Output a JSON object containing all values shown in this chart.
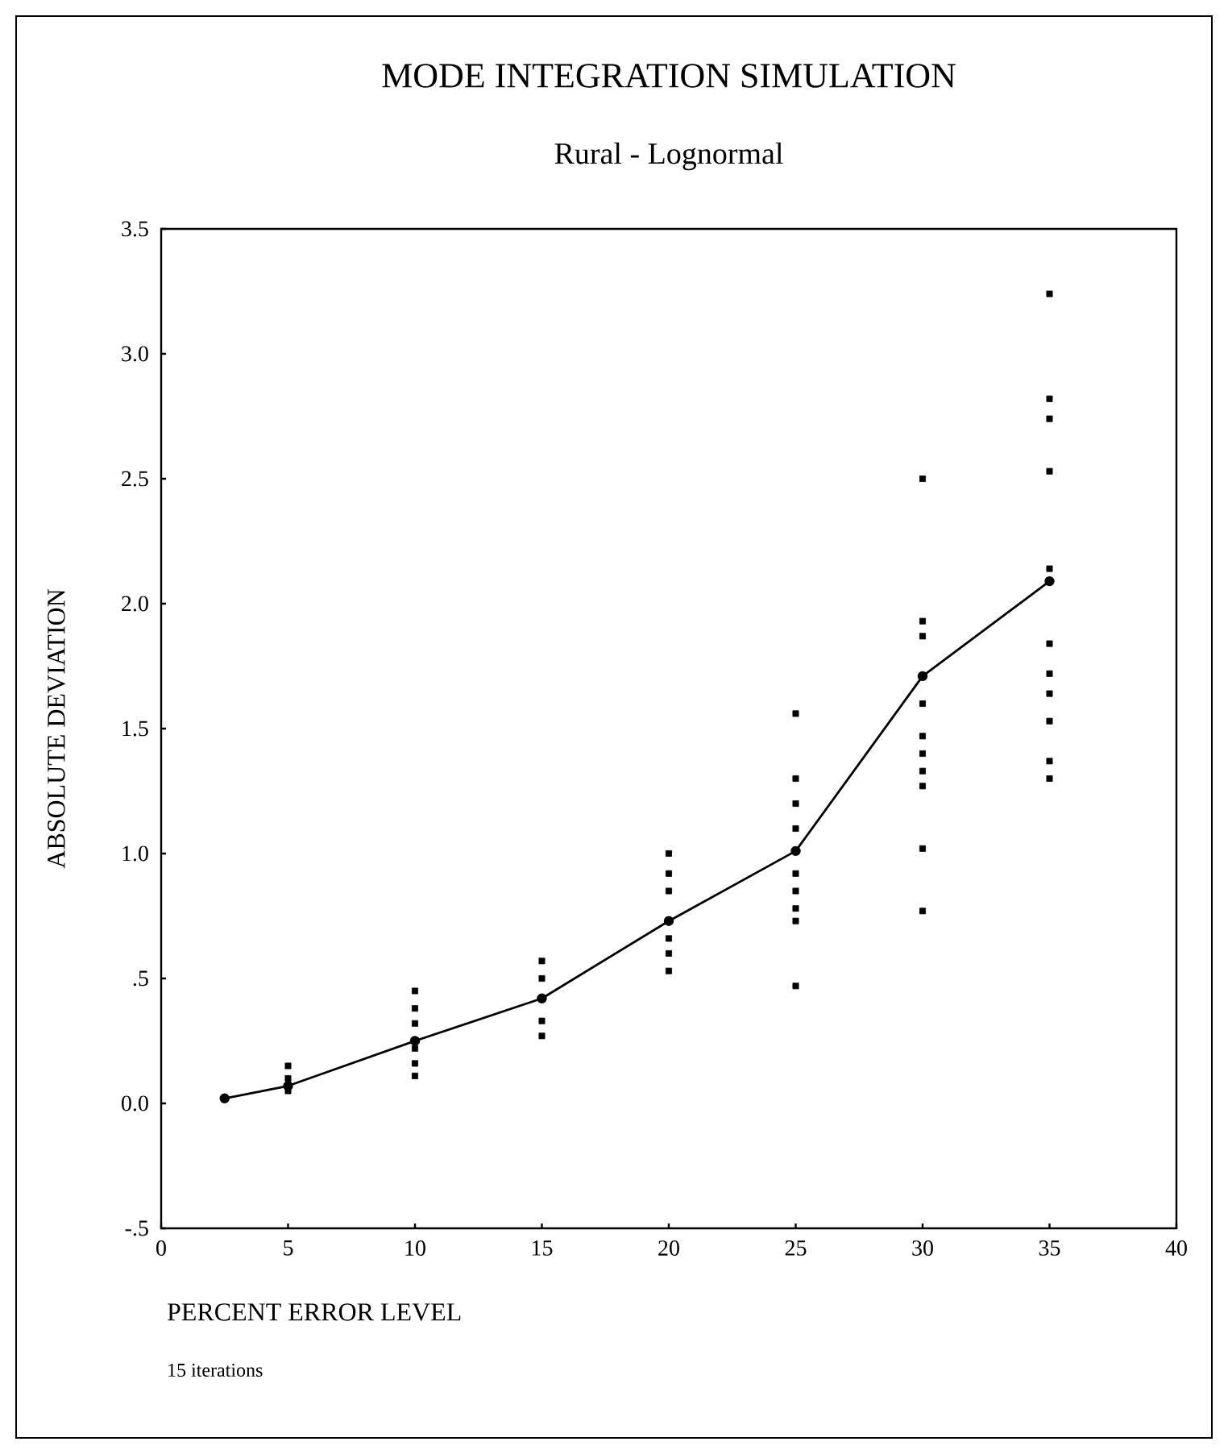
{
  "chart_data": {
    "type": "line",
    "title": "MODE INTEGRATION SIMULATION",
    "subtitle": "Rural - Lognormal",
    "xlabel": "PERCENT ERROR LEVEL",
    "ylabel": "ABSOLUTE DEVIATION",
    "annotations": [
      "15 iterations"
    ],
    "xlim": [
      0,
      40
    ],
    "xticks": [
      0,
      5,
      10,
      15,
      20,
      25,
      30,
      35,
      40
    ],
    "ylim": [
      -0.5,
      3.5
    ],
    "yticks": [
      {
        "value": -0.5,
        "label": "-.5"
      },
      {
        "value": 0,
        "label": "0.0"
      },
      {
        "value": 0.5,
        "label": ".5"
      },
      {
        "value": 1,
        "label": "1.0"
      },
      {
        "value": 1.5,
        "label": "1.5"
      },
      {
        "value": 2,
        "label": "2.0"
      },
      {
        "value": 2.5,
        "label": "2.5"
      },
      {
        "value": 3,
        "label": "3.0"
      },
      {
        "value": 3.5,
        "label": "3.5"
      }
    ],
    "series": [
      {
        "type": "scatter",
        "color": "#000000",
        "marker": "square",
        "x": [
          5,
          5,
          5,
          10,
          10,
          10,
          10,
          10,
          10,
          15,
          15,
          15,
          15,
          20,
          20,
          20,
          20,
          20,
          20,
          25,
          25,
          25,
          25,
          25,
          25,
          25,
          25,
          25,
          30,
          30,
          30,
          30,
          30,
          30,
          30,
          30,
          30,
          30,
          35,
          35,
          35,
          35,
          35,
          35,
          35,
          35,
          35,
          35,
          35
        ],
        "values": [
          0.05,
          0.1,
          0.15,
          0.11,
          0.16,
          0.22,
          0.32,
          0.38,
          0.45,
          0.27,
          0.33,
          0.5,
          0.57,
          0.53,
          0.6,
          0.66,
          0.85,
          0.92,
          1.0,
          0.47,
          0.73,
          0.78,
          0.85,
          0.92,
          1.1,
          1.2,
          1.3,
          1.56,
          0.77,
          1.02,
          1.27,
          1.33,
          1.4,
          1.47,
          1.6,
          1.87,
          1.93,
          2.5,
          1.3,
          1.37,
          1.53,
          1.64,
          1.72,
          1.84,
          2.14,
          2.53,
          2.74,
          2.82,
          3.24
        ]
      },
      {
        "type": "line",
        "color": "#000000",
        "marker": "circle",
        "x": [
          2.5,
          5,
          10,
          15,
          20,
          25,
          30,
          35
        ],
        "values": [
          0.02,
          0.07,
          0.25,
          0.42,
          0.73,
          1.01,
          1.71,
          2.09
        ]
      }
    ]
  }
}
